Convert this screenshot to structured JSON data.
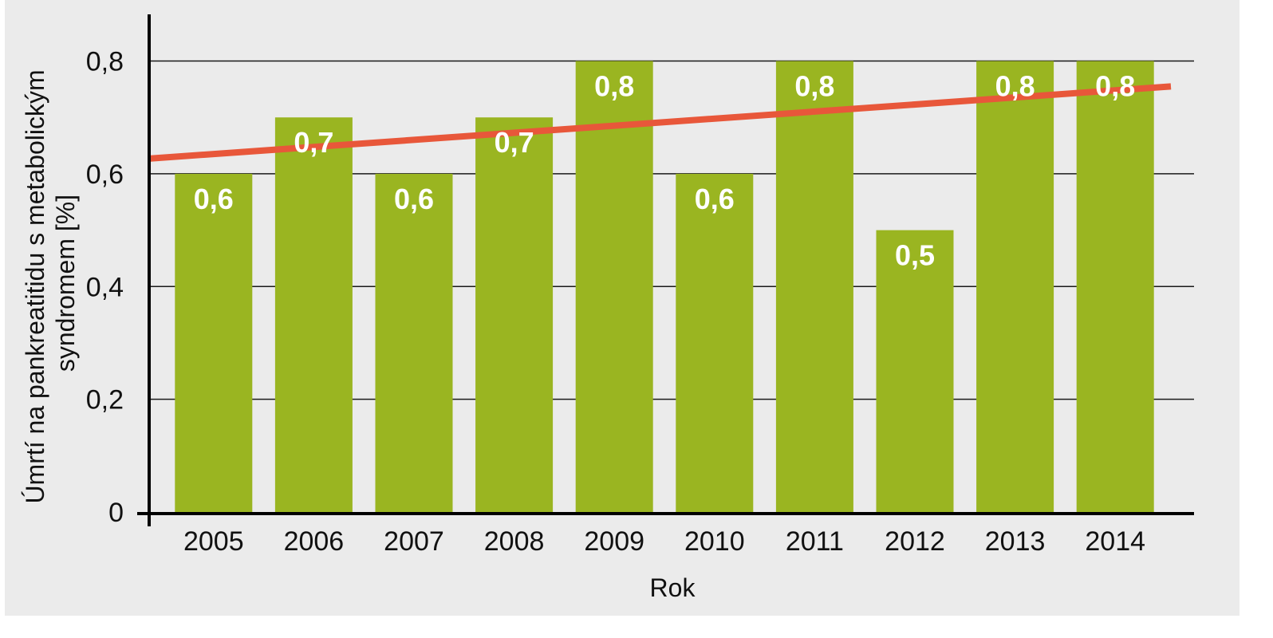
{
  "chart_data": {
    "type": "bar",
    "title": "",
    "xlabel": "Rok",
    "ylabel_line1": "Úmrtí na pankreatitidu s metabolickým",
    "ylabel_line2": "syndromem [%]",
    "categories": [
      "2005",
      "2006",
      "2007",
      "2008",
      "2009",
      "2010",
      "2011",
      "2012",
      "2013",
      "2014"
    ],
    "values": [
      0.6,
      0.7,
      0.6,
      0.7,
      0.8,
      0.6,
      0.8,
      0.5,
      0.8,
      0.8
    ],
    "value_labels": [
      "0,6",
      "0,7",
      "0,6",
      "0,7",
      "0,8",
      "0,6",
      "0,8",
      "0,5",
      "0,8",
      "0,8"
    ],
    "ylim": [
      0,
      0.88
    ],
    "yticks": [
      0,
      0.2,
      0.4,
      0.6,
      0.8
    ],
    "ytick_labels": [
      "0",
      "0,2",
      "0,4",
      "0,6",
      "0,8"
    ],
    "grid": "horizontal",
    "trendline": {
      "type": "linear",
      "start_value": 0.627,
      "end_value": 0.755
    },
    "colors": {
      "bar": "#9ab521",
      "trendline": "#e8573a",
      "grid": "#1a1a1a",
      "axis": "#000000"
    }
  }
}
